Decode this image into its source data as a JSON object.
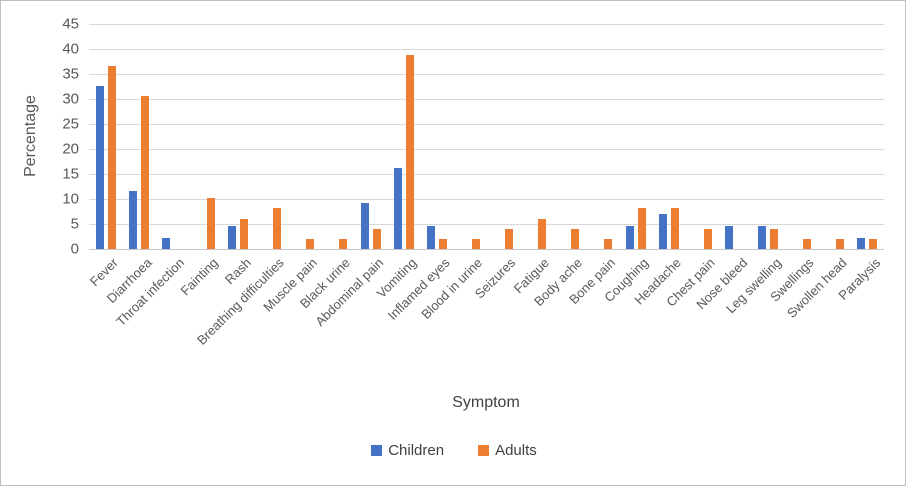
{
  "chart_data": {
    "type": "bar",
    "title": "",
    "xlabel": "Symptom",
    "ylabel": "Percentage",
    "ylim": [
      0,
      45
    ],
    "yticks": [
      45,
      40,
      35,
      30,
      25,
      20,
      15,
      10,
      5,
      0
    ],
    "grid": true,
    "legend_position": "bottom-center",
    "categories": [
      "Fever",
      "Diarrhoea",
      "Throat infection",
      "Fainting",
      "Rash",
      "Breathing difficulties",
      "Muscle pain",
      "Black urine",
      "Abdominal pain",
      "Vomiting",
      "Inflamed eyes",
      "Blood in urine",
      "Seizures",
      "Fatigue",
      "Body ache",
      "Bone pain",
      "Coughing",
      "Headache",
      "Chest pain",
      "Nose bleed",
      "Leg swelling",
      "Swellings",
      "Swollen head",
      "Paralysis"
    ],
    "series": [
      {
        "name": "Children",
        "color": "#4472c4",
        "values": [
          32.6,
          11.6,
          2.3,
          0,
          4.7,
          0,
          0,
          0,
          9.3,
          16.3,
          4.7,
          0,
          0,
          0,
          0,
          0,
          4.7,
          7.0,
          0,
          4.7,
          4.7,
          0,
          0,
          2.3
        ]
      },
      {
        "name": "Adults",
        "color": "#ed7d31",
        "values": [
          36.7,
          30.6,
          0,
          10.2,
          6.1,
          8.2,
          2.0,
          2.0,
          4.1,
          38.8,
          2.0,
          2.0,
          4.1,
          6.1,
          4.1,
          2.0,
          8.2,
          8.2,
          4.1,
          0,
          4.1,
          2.0,
          2.0,
          2.0
        ]
      }
    ]
  },
  "colors": {
    "children_bar": "#4472c4",
    "adults_bar": "#ed7d31",
    "gridline": "#d9d9d9",
    "axis_text": "#595959",
    "figure_border": "#bfbfbf"
  }
}
